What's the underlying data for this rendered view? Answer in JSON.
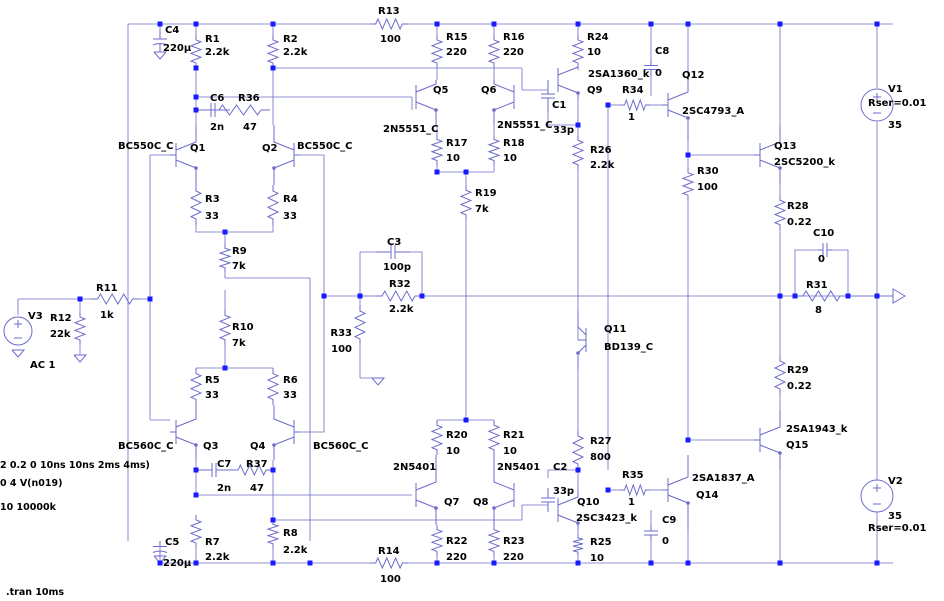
{
  "components": {
    "R1": {
      "ref": "R1",
      "value": "2.2k"
    },
    "R2": {
      "ref": "R2",
      "value": "2.2k"
    },
    "R3": {
      "ref": "R3",
      "value": "33"
    },
    "R4": {
      "ref": "R4",
      "value": "33"
    },
    "R5": {
      "ref": "R5",
      "value": "33"
    },
    "R6": {
      "ref": "R6",
      "value": "33"
    },
    "R7": {
      "ref": "R7",
      "value": "2.2k"
    },
    "R8": {
      "ref": "R8",
      "value": "2.2k"
    },
    "R9": {
      "ref": "R9",
      "value": "7k"
    },
    "R10": {
      "ref": "R10",
      "value": "7k"
    },
    "R11": {
      "ref": "R11",
      "value": "1k"
    },
    "R12": {
      "ref": "R12",
      "value": "22k"
    },
    "R13": {
      "ref": "R13",
      "value": "100"
    },
    "R14": {
      "ref": "R14",
      "value": "100"
    },
    "R15": {
      "ref": "R15",
      "value": "220"
    },
    "R16": {
      "ref": "R16",
      "value": "220"
    },
    "R17": {
      "ref": "R17",
      "value": "10"
    },
    "R18": {
      "ref": "R18",
      "value": "10"
    },
    "R19": {
      "ref": "R19",
      "value": "7k"
    },
    "R20": {
      "ref": "R20",
      "value": "10"
    },
    "R21": {
      "ref": "R21",
      "value": "10"
    },
    "R22": {
      "ref": "R22",
      "value": "220"
    },
    "R23": {
      "ref": "R23",
      "value": "220"
    },
    "R24": {
      "ref": "R24",
      "value": "10"
    },
    "R25": {
      "ref": "R25",
      "value": "10"
    },
    "R26": {
      "ref": "R26",
      "value": "2.2k"
    },
    "R27": {
      "ref": "R27",
      "value": "800"
    },
    "R28": {
      "ref": "R28",
      "value": "0.22"
    },
    "R29": {
      "ref": "R29",
      "value": "0.22"
    },
    "R30": {
      "ref": "R30",
      "value": "100"
    },
    "R31": {
      "ref": "R31",
      "value": "8"
    },
    "R32": {
      "ref": "R32",
      "value": "2.2k"
    },
    "R33": {
      "ref": "R33",
      "value": "100"
    },
    "R34": {
      "ref": "R34",
      "value": "1"
    },
    "R35": {
      "ref": "R35",
      "value": "1"
    },
    "R36": {
      "ref": "R36",
      "value": "47"
    },
    "R37": {
      "ref": "R37",
      "value": "47"
    },
    "C1": {
      "ref": "C1",
      "value": "33p"
    },
    "C2": {
      "ref": "C2",
      "value": "33p"
    },
    "C3": {
      "ref": "C3",
      "value": "100p"
    },
    "C4": {
      "ref": "C4",
      "value": "220µ"
    },
    "C5": {
      "ref": "C5",
      "value": "220µ"
    },
    "C6": {
      "ref": "C6",
      "value": "2n"
    },
    "C7": {
      "ref": "C7",
      "value": "2n"
    },
    "C8": {
      "ref": "C8",
      "value": "0"
    },
    "C9": {
      "ref": "C9",
      "value": "0"
    },
    "C10": {
      "ref": "C10",
      "value": "0"
    },
    "Q1": {
      "ref": "Q1",
      "model": "BC550C_C"
    },
    "Q2": {
      "ref": "Q2",
      "model": "BC550C_C"
    },
    "Q3": {
      "ref": "Q3",
      "model": "BC560C_C"
    },
    "Q4": {
      "ref": "Q4",
      "model": "BC560C_C"
    },
    "Q5": {
      "ref": "Q5",
      "model": "2N5551_C"
    },
    "Q6": {
      "ref": "Q6",
      "model": "2N5551_C"
    },
    "Q7": {
      "ref": "Q7",
      "model": "2N5401"
    },
    "Q8": {
      "ref": "Q8",
      "model": "2N5401"
    },
    "Q9": {
      "ref": "Q9",
      "model": "2SA1360_k"
    },
    "Q10": {
      "ref": "Q10",
      "model": "2SC3423_k"
    },
    "Q11": {
      "ref": "Q11",
      "model": "BD139_C"
    },
    "Q12": {
      "ref": "Q12",
      "model": "2SC4793_A"
    },
    "Q13": {
      "ref": "Q13",
      "model": "2SC5200_k"
    },
    "Q14": {
      "ref": "Q14",
      "model": "2SA1837_A"
    },
    "Q15": {
      "ref": "Q15",
      "model": "2SA1943_k"
    },
    "V1": {
      "ref": "V1",
      "value": "35",
      "rser": "Rser=0.01"
    },
    "V2": {
      "ref": "V2",
      "value": "35",
      "rser": "Rser=0.01"
    },
    "V3": {
      "ref": "V3",
      "value": "AC 1"
    }
  },
  "directives": {
    "pulse": "2 0.2 0 10ns 10ns 2ms 4ms)",
    "four": "0 4 V(n019)",
    "dc": "10 10000k",
    "tran": ".tran 10ms"
  },
  "colors": {
    "wire": "#6c6ccc",
    "junction": "#1a1aff",
    "text": "#000000"
  }
}
